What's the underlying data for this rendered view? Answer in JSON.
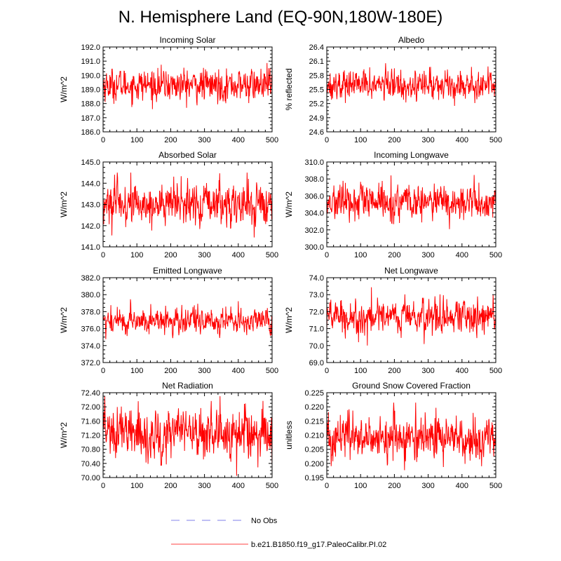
{
  "figure_title": "N. Hemisphere Land (EQ-90N,180W-180E)",
  "legend": [
    {
      "label": "No Obs",
      "color": "#9999ee",
      "dash": true
    },
    {
      "label": "b.e21.B1850.f19_g17.PaleoCalibr.PI.02",
      "color": "#ff0000",
      "dash": false
    }
  ],
  "chart_data": [
    {
      "type": "line",
      "title": "Incoming Solar",
      "ylabel": "W/m^2",
      "xlim": [
        0,
        500
      ],
      "ylim": [
        186.0,
        192.0
      ],
      "xticks": [
        "0",
        "100",
        "200",
        "300",
        "400",
        "500"
      ],
      "yticks": [
        "186.0",
        "187.0",
        "188.0",
        "189.0",
        "190.0",
        "191.0",
        "192.0"
      ],
      "series": [
        {
          "name": "b.e21.B1850.f19_g17.PaleoCalibr.PI.02",
          "color": "#ff0000",
          "n_points": 500,
          "mean": 189.3,
          "std": 0.55,
          "min": 186.8,
          "max": 191.7
        }
      ]
    },
    {
      "type": "line",
      "title": "Albedo",
      "ylabel": "% reflected",
      "xlim": [
        0,
        500
      ],
      "ylim": [
        24.6,
        26.4
      ],
      "xticks": [
        "0",
        "100",
        "200",
        "300",
        "400",
        "500"
      ],
      "yticks": [
        "24.6",
        "24.9",
        "25.2",
        "25.5",
        "25.8",
        "26.1",
        "26.4"
      ],
      "series": [
        {
          "name": "b.e21.B1850.f19_g17.PaleoCalibr.PI.02",
          "color": "#ff0000",
          "n_points": 500,
          "mean": 25.6,
          "std": 0.15,
          "min": 24.9,
          "max": 26.2
        }
      ]
    },
    {
      "type": "line",
      "title": "Absorbed Solar",
      "ylabel": "W/m^2",
      "xlim": [
        0,
        500
      ],
      "ylim": [
        141.0,
        145.0
      ],
      "xticks": [
        "0",
        "100",
        "200",
        "300",
        "400",
        "500"
      ],
      "yticks": [
        "141.0",
        "142.0",
        "143.0",
        "144.0",
        "145.0"
      ],
      "series": [
        {
          "name": "b.e21.B1850.f19_g17.PaleoCalibr.PI.02",
          "color": "#ff0000",
          "n_points": 500,
          "mean": 143.0,
          "std": 0.5,
          "min": 141.3,
          "max": 144.5
        }
      ]
    },
    {
      "type": "line",
      "title": "Incoming Longwave",
      "ylabel": "W/m^2",
      "xlim": [
        0,
        500
      ],
      "ylim": [
        300.0,
        310.0
      ],
      "xticks": [
        "0",
        "100",
        "200",
        "300",
        "400",
        "500"
      ],
      "yticks": [
        "300.0",
        "302.0",
        "304.0",
        "306.0",
        "308.0",
        "310.0"
      ],
      "series": [
        {
          "name": "b.e21.B1850.f19_g17.PaleoCalibr.PI.02",
          "color": "#ff0000",
          "n_points": 500,
          "mean": 305.2,
          "std": 1.0,
          "min": 301.5,
          "max": 308.8
        }
      ]
    },
    {
      "type": "line",
      "title": "Emitted Longwave",
      "ylabel": "W/m^2",
      "xlim": [
        0,
        500
      ],
      "ylim": [
        372.0,
        382.0
      ],
      "xticks": [
        "0",
        "100",
        "200",
        "300",
        "400",
        "500"
      ],
      "yticks": [
        "372.0",
        "374.0",
        "376.0",
        "378.0",
        "380.0",
        "382.0"
      ],
      "series": [
        {
          "name": "b.e21.B1850.f19_g17.PaleoCalibr.PI.02",
          "color": "#ff0000",
          "n_points": 500,
          "mean": 376.9,
          "std": 0.75,
          "min": 373.8,
          "max": 380.3
        }
      ]
    },
    {
      "type": "line",
      "title": "Net Longwave",
      "ylabel": "W/m^2",
      "xlim": [
        0,
        500
      ],
      "ylim": [
        69.0,
        74.0
      ],
      "xticks": [
        "0",
        "100",
        "200",
        "300",
        "400",
        "500"
      ],
      "yticks": [
        "69.0",
        "70.0",
        "71.0",
        "72.0",
        "73.0",
        "74.0"
      ],
      "series": [
        {
          "name": "b.e21.B1850.f19_g17.PaleoCalibr.PI.02",
          "color": "#ff0000",
          "n_points": 500,
          "mean": 71.7,
          "std": 0.5,
          "min": 70.0,
          "max": 73.9
        }
      ]
    },
    {
      "type": "line",
      "title": "Net Radiation",
      "ylabel": "W/m^2",
      "xlim": [
        0,
        500
      ],
      "ylim": [
        70.0,
        72.4
      ],
      "xticks": [
        "0",
        "100",
        "200",
        "300",
        "400",
        "500"
      ],
      "yticks": [
        "70.00",
        "70.40",
        "70.80",
        "71.20",
        "71.60",
        "72.00",
        "72.40"
      ],
      "series": [
        {
          "name": "b.e21.B1850.f19_g17.PaleoCalibr.PI.02",
          "color": "#ff0000",
          "n_points": 500,
          "mean": 71.25,
          "std": 0.35,
          "min": 70.05,
          "max": 72.3
        }
      ]
    },
    {
      "type": "line",
      "title": "Ground Snow Covered Fraction",
      "ylabel": "unitless",
      "xlim": [
        0,
        500
      ],
      "ylim": [
        0.195,
        0.225
      ],
      "xticks": [
        "0",
        "100",
        "200",
        "300",
        "400",
        "500"
      ],
      "yticks": [
        "0.195",
        "0.200",
        "0.205",
        "0.210",
        "0.215",
        "0.220",
        "0.225"
      ],
      "series": [
        {
          "name": "b.e21.B1850.f19_g17.PaleoCalibr.PI.02",
          "color": "#ff0000",
          "n_points": 500,
          "mean": 0.2088,
          "std": 0.0038,
          "min": 0.197,
          "max": 0.2215
        }
      ]
    }
  ]
}
